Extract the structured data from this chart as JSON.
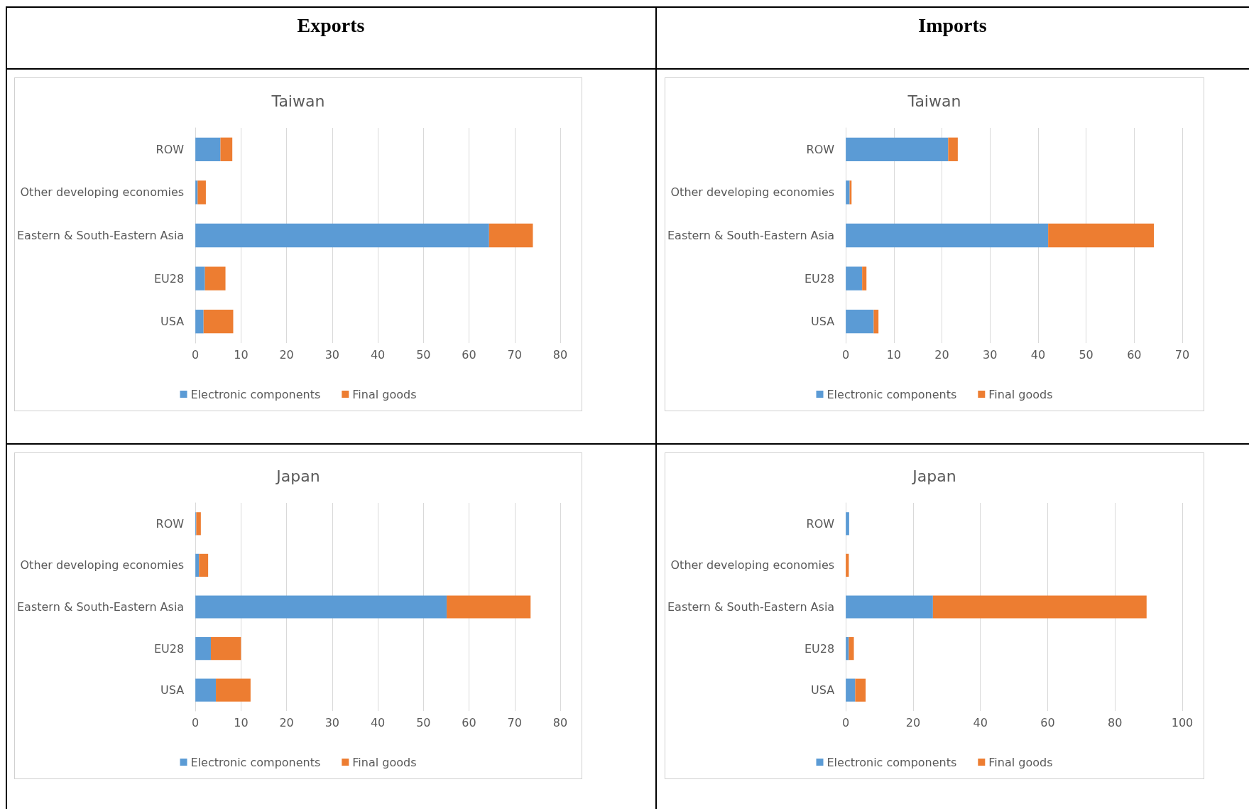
{
  "chart_data": [
    {
      "type": "bar",
      "orientation": "horizontal",
      "stacked": true,
      "title": "Taiwan",
      "annotations": [
        "Exports"
      ],
      "categories": [
        "ROW",
        "Other developing economies",
        "Eastern & South-Eastern Asia",
        "EU28",
        "USA"
      ],
      "series": [
        {
          "name": "Electronic components",
          "color": "#5b9bd5",
          "values": [
            5.5,
            0.5,
            64.4,
            2.1,
            1.8
          ]
        },
        {
          "name": "Final goods",
          "color": "#ed7d31",
          "values": [
            2.6,
            1.8,
            9.6,
            4.5,
            6.5
          ]
        }
      ],
      "xlim": [
        0,
        80
      ],
      "xticks": [
        0,
        10,
        20,
        30,
        40,
        50,
        60,
        70,
        80
      ],
      "grid": "x",
      "legend": "bottom"
    },
    {
      "type": "bar",
      "orientation": "horizontal",
      "stacked": true,
      "title": "Taiwan",
      "annotations": [
        "Imports"
      ],
      "categories": [
        "ROW",
        "Other developing economies",
        "Eastern & South-Eastern Asia",
        "EU28",
        "USA"
      ],
      "series": [
        {
          "name": "Electronic components",
          "color": "#5b9bd5",
          "values": [
            21.3,
            0.8,
            42.1,
            3.4,
            5.8
          ]
        },
        {
          "name": "Final goods",
          "color": "#ed7d31",
          "values": [
            2.0,
            0.4,
            22.0,
            0.9,
            1.0
          ]
        }
      ],
      "xlim": [
        0,
        70
      ],
      "xticks": [
        0,
        10,
        20,
        30,
        40,
        50,
        60,
        70
      ],
      "grid": "x",
      "legend": "bottom"
    },
    {
      "type": "bar",
      "orientation": "horizontal",
      "stacked": true,
      "title": "Japan",
      "categories": [
        "ROW",
        "Other developing economies",
        "Eastern & South-Eastern Asia",
        "EU28",
        "USA"
      ],
      "series": [
        {
          "name": "Electronic components",
          "color": "#5b9bd5",
          "values": [
            0.2,
            0.8,
            55.1,
            3.4,
            4.5
          ]
        },
        {
          "name": "Final goods",
          "color": "#ed7d31",
          "values": [
            1.0,
            2.0,
            18.4,
            6.6,
            7.6
          ]
        }
      ],
      "xlim": [
        0,
        80
      ],
      "xticks": [
        0,
        10,
        20,
        30,
        40,
        50,
        60,
        70,
        80
      ],
      "grid": "x",
      "legend": "bottom"
    },
    {
      "type": "bar",
      "orientation": "horizontal",
      "stacked": true,
      "title": "Japan",
      "categories": [
        "ROW",
        "Other developing economies",
        "Eastern & South-Eastern Asia",
        "EU28",
        "USA"
      ],
      "series": [
        {
          "name": "Electronic components",
          "color": "#5b9bd5",
          "values": [
            1.0,
            0,
            25.9,
            0.9,
            2.8
          ]
        },
        {
          "name": "Final goods",
          "color": "#ed7d31",
          "values": [
            null,
            0.9,
            63.5,
            1.5,
            3.1
          ]
        }
      ],
      "xlim": [
        0,
        100
      ],
      "xticks": [
        0,
        20,
        40,
        60,
        80,
        100
      ],
      "grid": "x",
      "legend": "bottom"
    }
  ]
}
